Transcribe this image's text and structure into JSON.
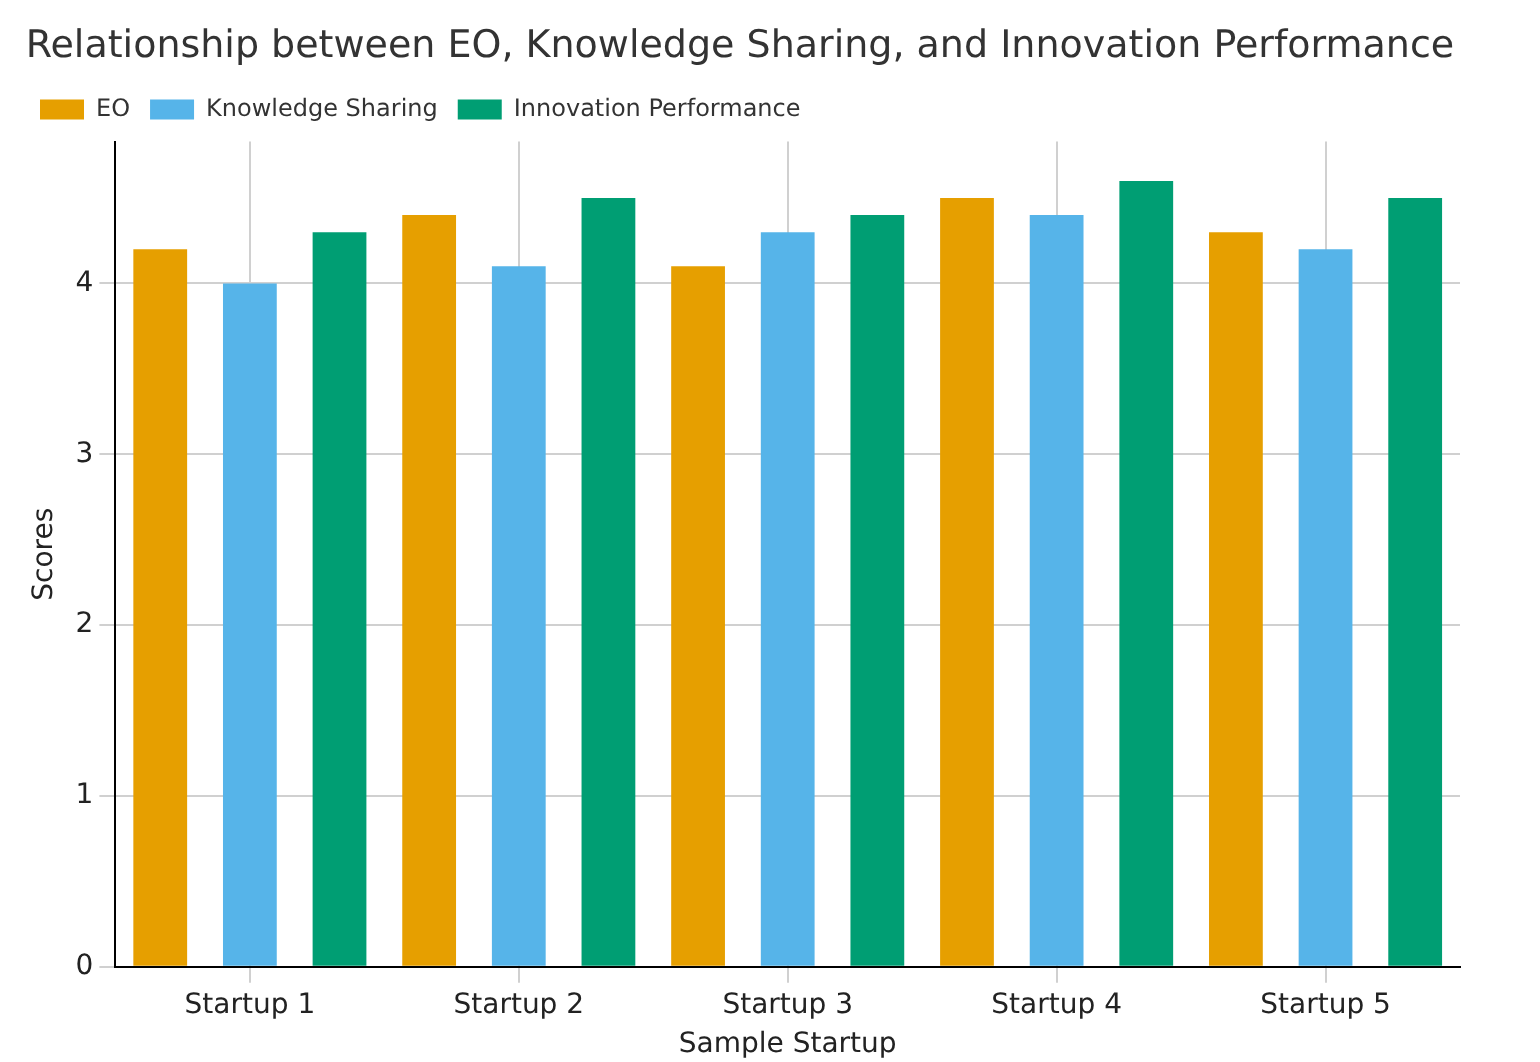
{
  "chart_data": {
    "type": "bar",
    "title": "Relationship between EO, Knowledge Sharing, and Innovation Performance",
    "xlabel": "Sample Startup",
    "ylabel": "Scores",
    "categories": [
      "Startup 1",
      "Startup 2",
      "Startup 3",
      "Startup 4",
      "Startup 5"
    ],
    "series": [
      {
        "name": "EO",
        "color": "#e69f00",
        "values": [
          4.2,
          4.4,
          4.1,
          4.5,
          4.3
        ]
      },
      {
        "name": "Knowledge Sharing",
        "color": "#56b4e9",
        "values": [
          4.0,
          4.1,
          4.3,
          4.4,
          4.2
        ]
      },
      {
        "name": "Innovation Performance",
        "color": "#009e73",
        "values": [
          4.3,
          4.5,
          4.4,
          4.6,
          4.5
        ]
      }
    ],
    "ylim": [
      0,
      4.83
    ],
    "yticks": [
      0,
      1,
      2,
      3,
      4
    ],
    "grid": true,
    "legend": "top left"
  }
}
